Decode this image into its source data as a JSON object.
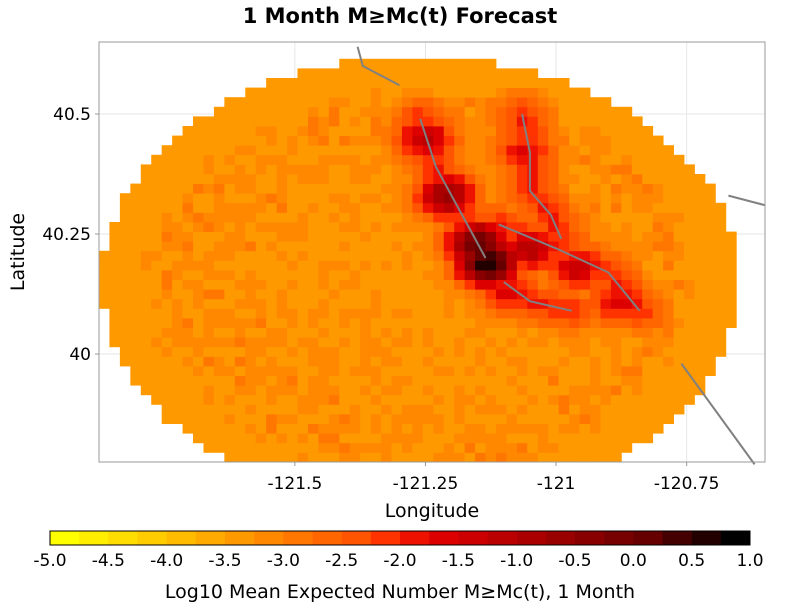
{
  "chart_data": {
    "type": "heatmap",
    "title": "1 Month M≥Mc(t) Forecast",
    "xlabel": "Longitude",
    "ylabel": "Latitude",
    "xlim": [
      -121.875,
      -120.6
    ],
    "ylim": [
      39.775,
      40.65
    ],
    "xticks": [
      -121.5,
      -121.25,
      -121.0,
      -120.75
    ],
    "xtick_labels": [
      "-121.5",
      "-121.25",
      "-121",
      "-120.75"
    ],
    "yticks": [
      40.0,
      40.25,
      40.5
    ],
    "ytick_labels": [
      "40",
      "40.25",
      "40.5"
    ],
    "grid": true,
    "region": {
      "center_lon": -121.26,
      "center_lat": 40.15,
      "radius_lon": 0.61,
      "radius_lat": 0.47
    },
    "cell_size_deg": 0.02,
    "background_level": -3.4,
    "hotspots": [
      {
        "lon": -121.13,
        "lat": 40.19,
        "value": 0.8
      },
      {
        "lon": -121.15,
        "lat": 40.23,
        "value": 0.2
      },
      {
        "lon": -121.21,
        "lat": 40.33,
        "value": -0.6
      },
      {
        "lon": -121.25,
        "lat": 40.45,
        "value": -1.2
      },
      {
        "lon": -121.05,
        "lat": 40.22,
        "value": -1.0
      },
      {
        "lon": -120.96,
        "lat": 40.18,
        "value": -1.3
      },
      {
        "lon": -120.88,
        "lat": 40.11,
        "value": -1.6
      },
      {
        "lon": -121.06,
        "lat": 40.42,
        "value": -1.7
      },
      {
        "lon": -121.09,
        "lat": 40.13,
        "value": -1.6
      }
    ],
    "faults": [
      [
        [
          -121.26,
          40.49
        ],
        [
          -121.23,
          40.39
        ],
        [
          -121.18,
          40.29
        ],
        [
          -121.16,
          40.25
        ],
        [
          -121.135,
          40.2
        ]
      ],
      [
        [
          -121.065,
          40.5
        ],
        [
          -121.05,
          40.42
        ],
        [
          -121.05,
          40.34
        ],
        [
          -121.01,
          40.29
        ],
        [
          -120.99,
          40.24
        ]
      ],
      [
        [
          -121.11,
          40.27
        ],
        [
          -121.0,
          40.22
        ],
        [
          -120.9,
          40.17
        ],
        [
          -120.84,
          40.09
        ]
      ],
      [
        [
          -121.1,
          40.15
        ],
        [
          -121.05,
          40.11
        ],
        [
          -120.97,
          40.09
        ]
      ],
      [
        [
          -121.38,
          40.64
        ],
        [
          -121.37,
          40.6
        ],
        [
          -121.3,
          40.56
        ]
      ],
      [
        [
          -120.67,
          40.33
        ],
        [
          -120.6,
          40.31
        ]
      ],
      [
        [
          -120.76,
          39.98
        ],
        [
          -120.62,
          39.77
        ]
      ]
    ],
    "colorbar": {
      "min": -5.0,
      "max": 1.0,
      "tick_labels": [
        "-5.0",
        "-4.5",
        "-4.0",
        "-3.5",
        "-3.0",
        "-2.5",
        "-2.0",
        "-1.5",
        "-1.0",
        "-0.5",
        "0.0",
        "0.5",
        "1.0"
      ],
      "label": "Log10 Mean Expected Number M≥Mc(t), 1 Month",
      "colors": [
        "#ffff00",
        "#ffee00",
        "#ffdd00",
        "#ffcc00",
        "#ffbb00",
        "#ffaa00",
        "#ff9900",
        "#ff8800",
        "#ff7700",
        "#ff6600",
        "#ff5500",
        "#ff3300",
        "#ee1100",
        "#dd0000",
        "#cc0000",
        "#bb0000",
        "#aa0000",
        "#990000",
        "#880000",
        "#770000",
        "#660000",
        "#440000",
        "#220000",
        "#000000"
      ]
    }
  }
}
